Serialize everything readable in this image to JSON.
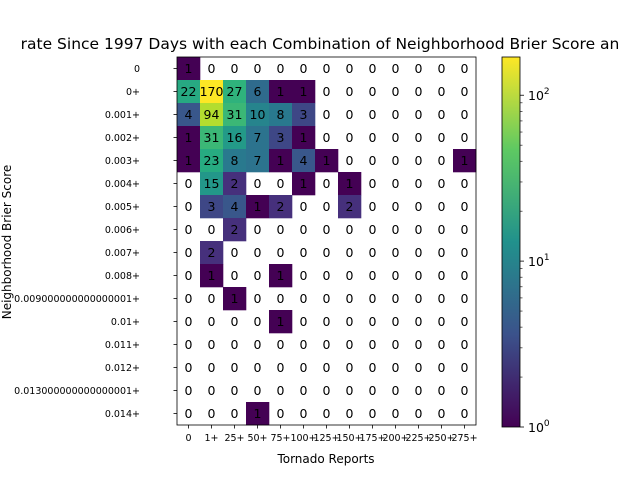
{
  "chart_data": {
    "type": "heatmap",
    "title": "rate Since 1997 Days with each Combination of Neighborhood Brier Score an",
    "xlabel": "Tornado Reports",
    "ylabel": "Neighborhood Brier Score",
    "x_categories": [
      "0",
      "1+",
      "25+",
      "50+",
      "75+",
      "100+",
      "125+",
      "150+",
      "175+",
      "200+",
      "225+",
      "250+",
      "275+"
    ],
    "y_categories": [
      "0",
      "0+",
      "0.001+",
      "0.002+",
      "0.003+",
      "0.004+",
      "0.005+",
      "0.006+",
      "0.007+",
      "0.008+",
      "0.009000000000000001+",
      "0.01+",
      "0.011+",
      "0.012+",
      "0.013000000000000001+",
      "0.014+"
    ],
    "values": [
      [
        1,
        0,
        0,
        0,
        0,
        0,
        0,
        0,
        0,
        0,
        0,
        0,
        0
      ],
      [
        22,
        170,
        27,
        6,
        1,
        1,
        0,
        0,
        0,
        0,
        0,
        0,
        0
      ],
      [
        4,
        94,
        31,
        10,
        8,
        3,
        0,
        0,
        0,
        0,
        0,
        0,
        0
      ],
      [
        1,
        31,
        16,
        7,
        3,
        1,
        0,
        0,
        0,
        0,
        0,
        0,
        0
      ],
      [
        1,
        23,
        8,
        7,
        1,
        4,
        1,
        0,
        0,
        0,
        0,
        0,
        1
      ],
      [
        0,
        15,
        2,
        0,
        0,
        1,
        0,
        1,
        0,
        0,
        0,
        0,
        0
      ],
      [
        0,
        3,
        4,
        1,
        2,
        0,
        0,
        2,
        0,
        0,
        0,
        0,
        0
      ],
      [
        0,
        0,
        2,
        0,
        0,
        0,
        0,
        0,
        0,
        0,
        0,
        0,
        0
      ],
      [
        0,
        2,
        0,
        0,
        0,
        0,
        0,
        0,
        0,
        0,
        0,
        0,
        0
      ],
      [
        0,
        1,
        0,
        0,
        1,
        0,
        0,
        0,
        0,
        0,
        0,
        0,
        0
      ],
      [
        0,
        0,
        1,
        0,
        0,
        0,
        0,
        0,
        0,
        0,
        0,
        0,
        0
      ],
      [
        0,
        0,
        0,
        0,
        1,
        0,
        0,
        0,
        0,
        0,
        0,
        0,
        0
      ],
      [
        0,
        0,
        0,
        0,
        0,
        0,
        0,
        0,
        0,
        0,
        0,
        0,
        0
      ],
      [
        0,
        0,
        0,
        0,
        0,
        0,
        0,
        0,
        0,
        0,
        0,
        0,
        0
      ],
      [
        0,
        0,
        0,
        0,
        0,
        0,
        0,
        0,
        0,
        0,
        0,
        0,
        0
      ],
      [
        0,
        0,
        0,
        1,
        0,
        0,
        0,
        0,
        0,
        0,
        0,
        0,
        0
      ]
    ],
    "color_scale": "log",
    "colormap": "viridis",
    "zero_color": "#ffffff",
    "colorbar": {
      "range": [
        1,
        170
      ],
      "ticks": [
        1,
        10,
        100
      ],
      "tick_labels": [
        "10^0",
        "10^1",
        "10^2"
      ]
    }
  }
}
